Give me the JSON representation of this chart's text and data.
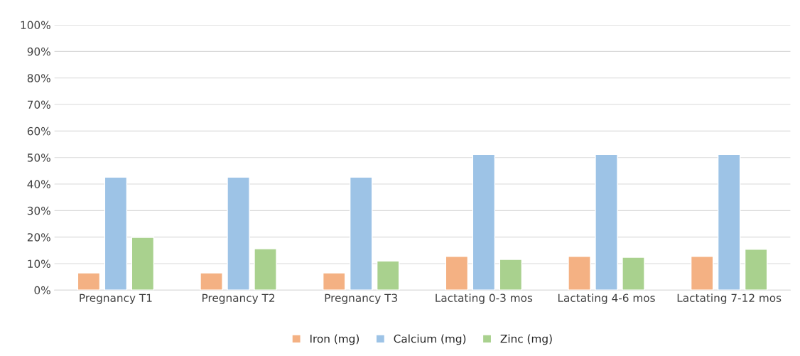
{
  "chart_data": {
    "type": "bar",
    "categories": [
      "Pregnancy T1",
      "Pregnancy T2",
      "Pregnancy T3",
      "Lactating 0-3 mos",
      "Lactating 4-6 mos",
      "Lactating 7-12 mos"
    ],
    "series": [
      {
        "name": "Iron (mg)",
        "color": "#f4b183",
        "values": [
          6.5,
          6.5,
          6.5,
          12.7,
          12.7,
          12.7
        ]
      },
      {
        "name": "Calcium (mg)",
        "color": "#9dc3e6",
        "values": [
          42.6,
          42.6,
          42.6,
          51.2,
          51.2,
          51.2
        ]
      },
      {
        "name": "Zinc (mg)",
        "color": "#a9d18e",
        "values": [
          19.9,
          15.6,
          11,
          11.6,
          12.4,
          15.4
        ]
      }
    ],
    "ylim": [
      0,
      100
    ],
    "yticks": [
      {
        "value": 0,
        "label": "0%"
      },
      {
        "value": 10,
        "label": "10%"
      },
      {
        "value": 20,
        "label": "20%"
      },
      {
        "value": 30,
        "label": "30%"
      },
      {
        "value": 40,
        "label": "40%"
      },
      {
        "value": 50,
        "label": "50%"
      },
      {
        "value": 60,
        "label": "60%"
      },
      {
        "value": 70,
        "label": "70%"
      },
      {
        "value": 80,
        "label": "80%"
      },
      {
        "value": 90,
        "label": "90%"
      },
      {
        "value": 100,
        "label": "100%"
      }
    ],
    "grid": "y",
    "legend": "bottom"
  }
}
